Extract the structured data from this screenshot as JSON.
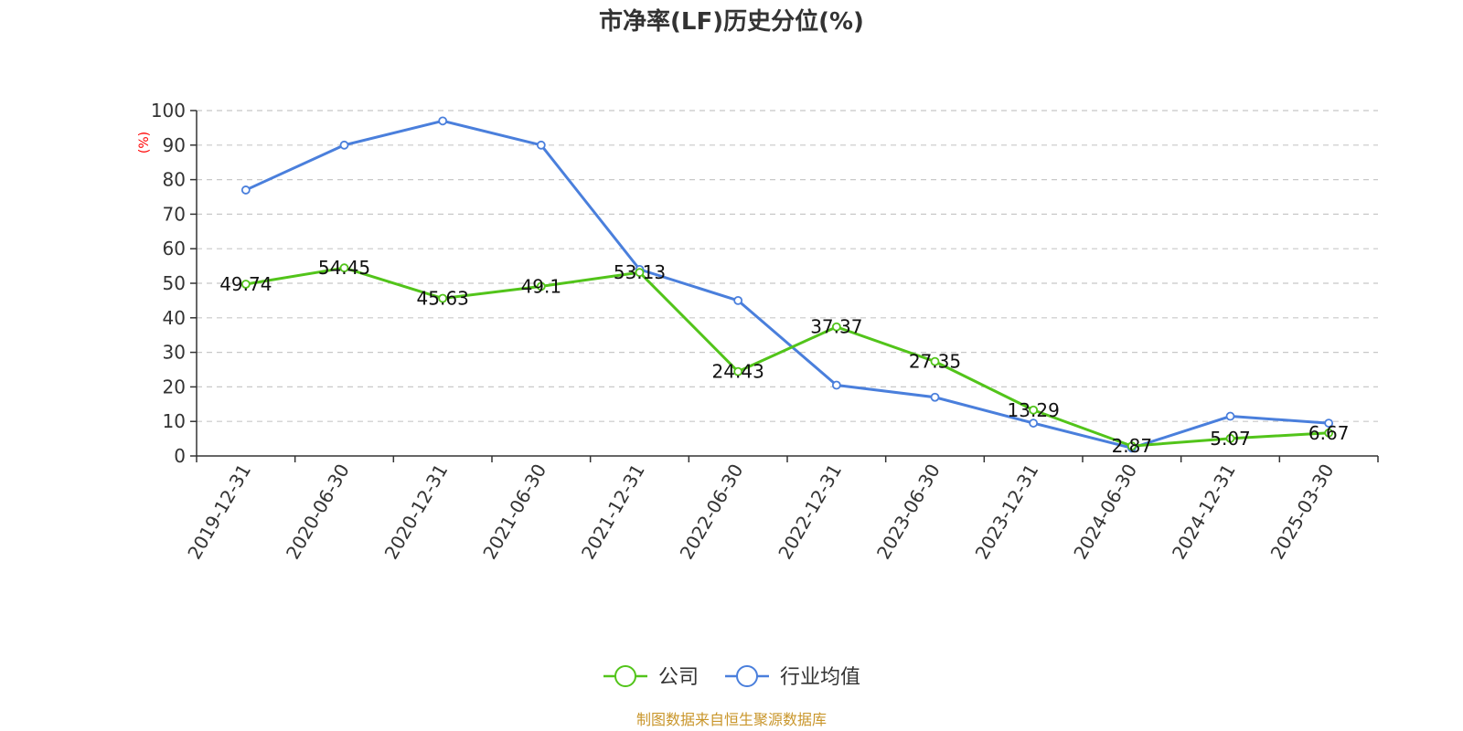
{
  "chart_data": {
    "type": "line",
    "title": "市净率(LF)历史分位(%)",
    "ylabel": "(%)",
    "xlabel": "",
    "ylim": [
      0,
      100
    ],
    "yticks": [
      0,
      10,
      20,
      30,
      40,
      50,
      60,
      70,
      80,
      90,
      100
    ],
    "categories": [
      "2019-12-31",
      "2020-06-30",
      "2020-12-31",
      "2021-06-30",
      "2021-12-31",
      "2022-06-30",
      "2022-12-31",
      "2023-06-30",
      "2023-12-31",
      "2024-06-30",
      "2024-12-31",
      "2025-03-30"
    ],
    "grid": true,
    "legend_position": "bottom-center",
    "series": [
      {
        "name": "公司",
        "color": "#52c41a",
        "values": [
          49.74,
          54.45,
          45.63,
          49.1,
          53.13,
          24.43,
          37.37,
          27.35,
          13.29,
          2.87,
          5.07,
          6.67
        ],
        "labels": [
          "49.74",
          "54.45",
          "45.63",
          "49.1",
          "53.13",
          "24.43",
          "37.37",
          "27.35",
          "13.29",
          "2.87",
          "5.07",
          "6.67"
        ]
      },
      {
        "name": "行业均值",
        "color": "#4a7fdc",
        "values": [
          77,
          90,
          97,
          90,
          54,
          45,
          20.5,
          17,
          9.5,
          2.3,
          11.5,
          9.5
        ]
      }
    ],
    "source": "制图数据来自恒生聚源数据库"
  }
}
